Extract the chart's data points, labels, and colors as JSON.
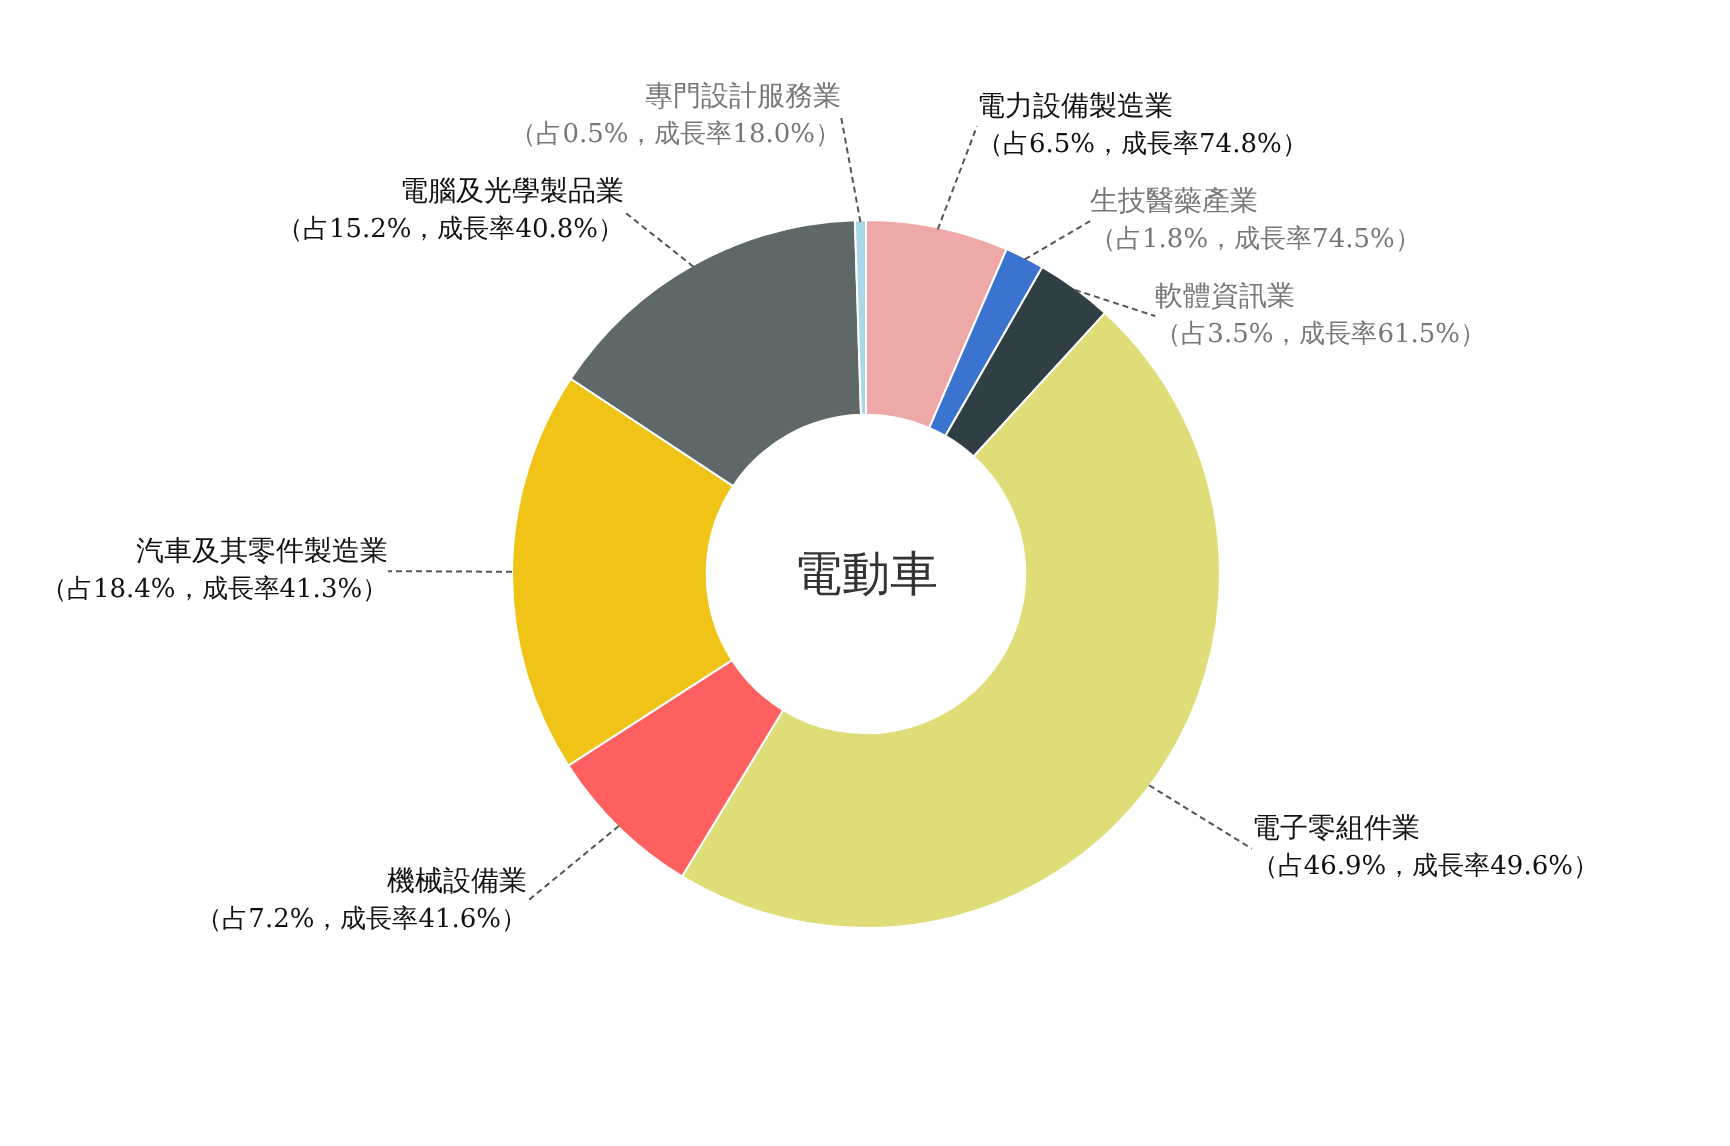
{
  "chart_data": {
    "type": "donut",
    "categories": [
      "電力設備製造業",
      "生技醫藥產業",
      "軟體資訊業",
      "電子零組件業",
      "機械設備業",
      "汽車及其零件製造業",
      "電腦及光學製品業",
      "專門設計服務業"
    ],
    "values": [
      6.5,
      1.8,
      3.5,
      46.9,
      7.2,
      18.4,
      15.2,
      0.5
    ],
    "colors": [
      "#eea8a8",
      "#3b74cf",
      "#2f3f44",
      "#dedd77",
      "#fe6060",
      "#f0c417",
      "#5e6868",
      "#a9d8e8"
    ],
    "value_labels": [
      "（占6.5%，成長率74.8%）",
      "（占1.8%，成長率74.5%）",
      "（占3.5%，成長率61.5%）",
      "（占46.9%，成長率49.6%）",
      "（占7.2%，成長率41.6%）",
      "（占18.4%，成長率41.3%）",
      "（占15.2%，成長率40.8%）",
      "（占0.5%，成長率18.0%）"
    ],
    "annotations": [
      "電動車"
    ]
  }
}
